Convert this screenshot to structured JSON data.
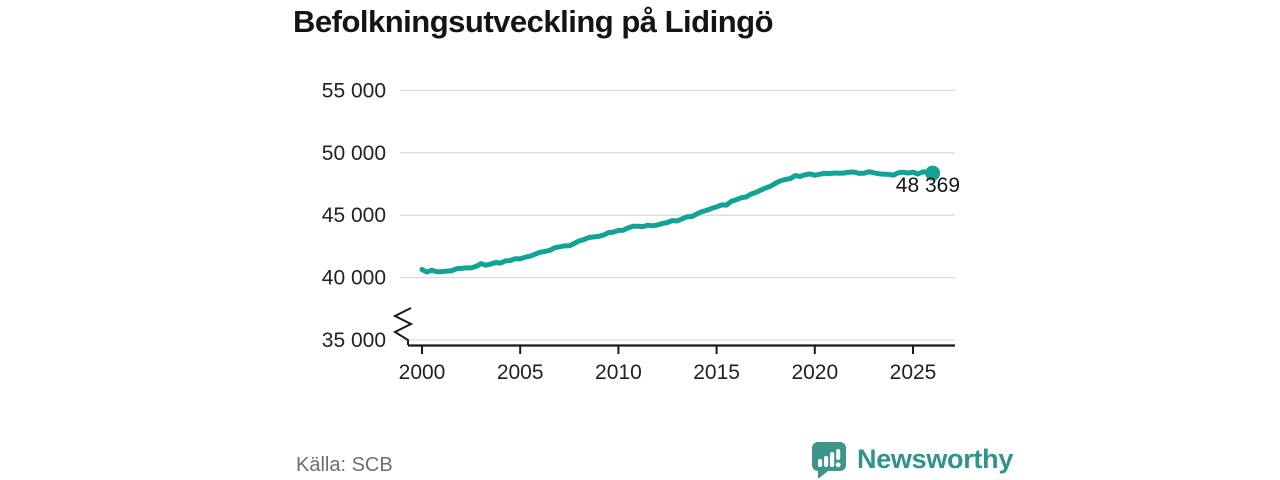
{
  "title": "Befolkningsutveckling på Lidingö",
  "source": {
    "text": "Källa: SCB"
  },
  "branding": {
    "name": "Newsworthy",
    "icon": "speech-bubble-bar-chart",
    "color": "#2f948d"
  },
  "colors": {
    "line": "#12a296",
    "grid": "#dcdcdc",
    "axis": "#1a1a1a",
    "tick_text": "#222222",
    "title_text": "#141414",
    "source_text": "#6e6e6e"
  },
  "annotation": {
    "label": "48 369"
  },
  "chart_data": {
    "type": "line",
    "title": "Befolkningsutveckling på Lidingö",
    "xlabel": "",
    "ylabel": "",
    "x": [
      2000,
      2001,
      2002,
      2003,
      2004,
      2005,
      2006,
      2007,
      2008,
      2009,
      2010,
      2011,
      2012,
      2013,
      2014,
      2015,
      2016,
      2017,
      2018,
      2019,
      2020,
      2021,
      2022,
      2023,
      2024,
      2025,
      2026
    ],
    "values": [
      40550,
      40450,
      40700,
      41050,
      41250,
      41550,
      41950,
      42400,
      42900,
      43400,
      43800,
      44150,
      44150,
      44600,
      45100,
      45600,
      46150,
      46800,
      47500,
      48100,
      48250,
      48300,
      48450,
      48400,
      48300,
      48400,
      48369
    ],
    "series_name": "Befolkning",
    "x_tick_years": [
      2000,
      2005,
      2010,
      2015,
      2020,
      2025
    ],
    "x_tick_labels": [
      "2000",
      "2005",
      "2010",
      "2015",
      "2020",
      "2025"
    ],
    "y_tick_values": [
      55000,
      50000,
      45000,
      40000,
      35000
    ],
    "y_tick_labels": [
      "55 000",
      "50 000",
      "45 000",
      "40 000",
      "35 000"
    ],
    "ylim": [
      35000,
      56000
    ],
    "xlim": [
      2000,
      2027
    ],
    "grid": "horizontal",
    "axis_break": true,
    "legend": "none",
    "line_color": "#12a296",
    "last_point_value": 48369,
    "last_point_label": "48 369"
  }
}
